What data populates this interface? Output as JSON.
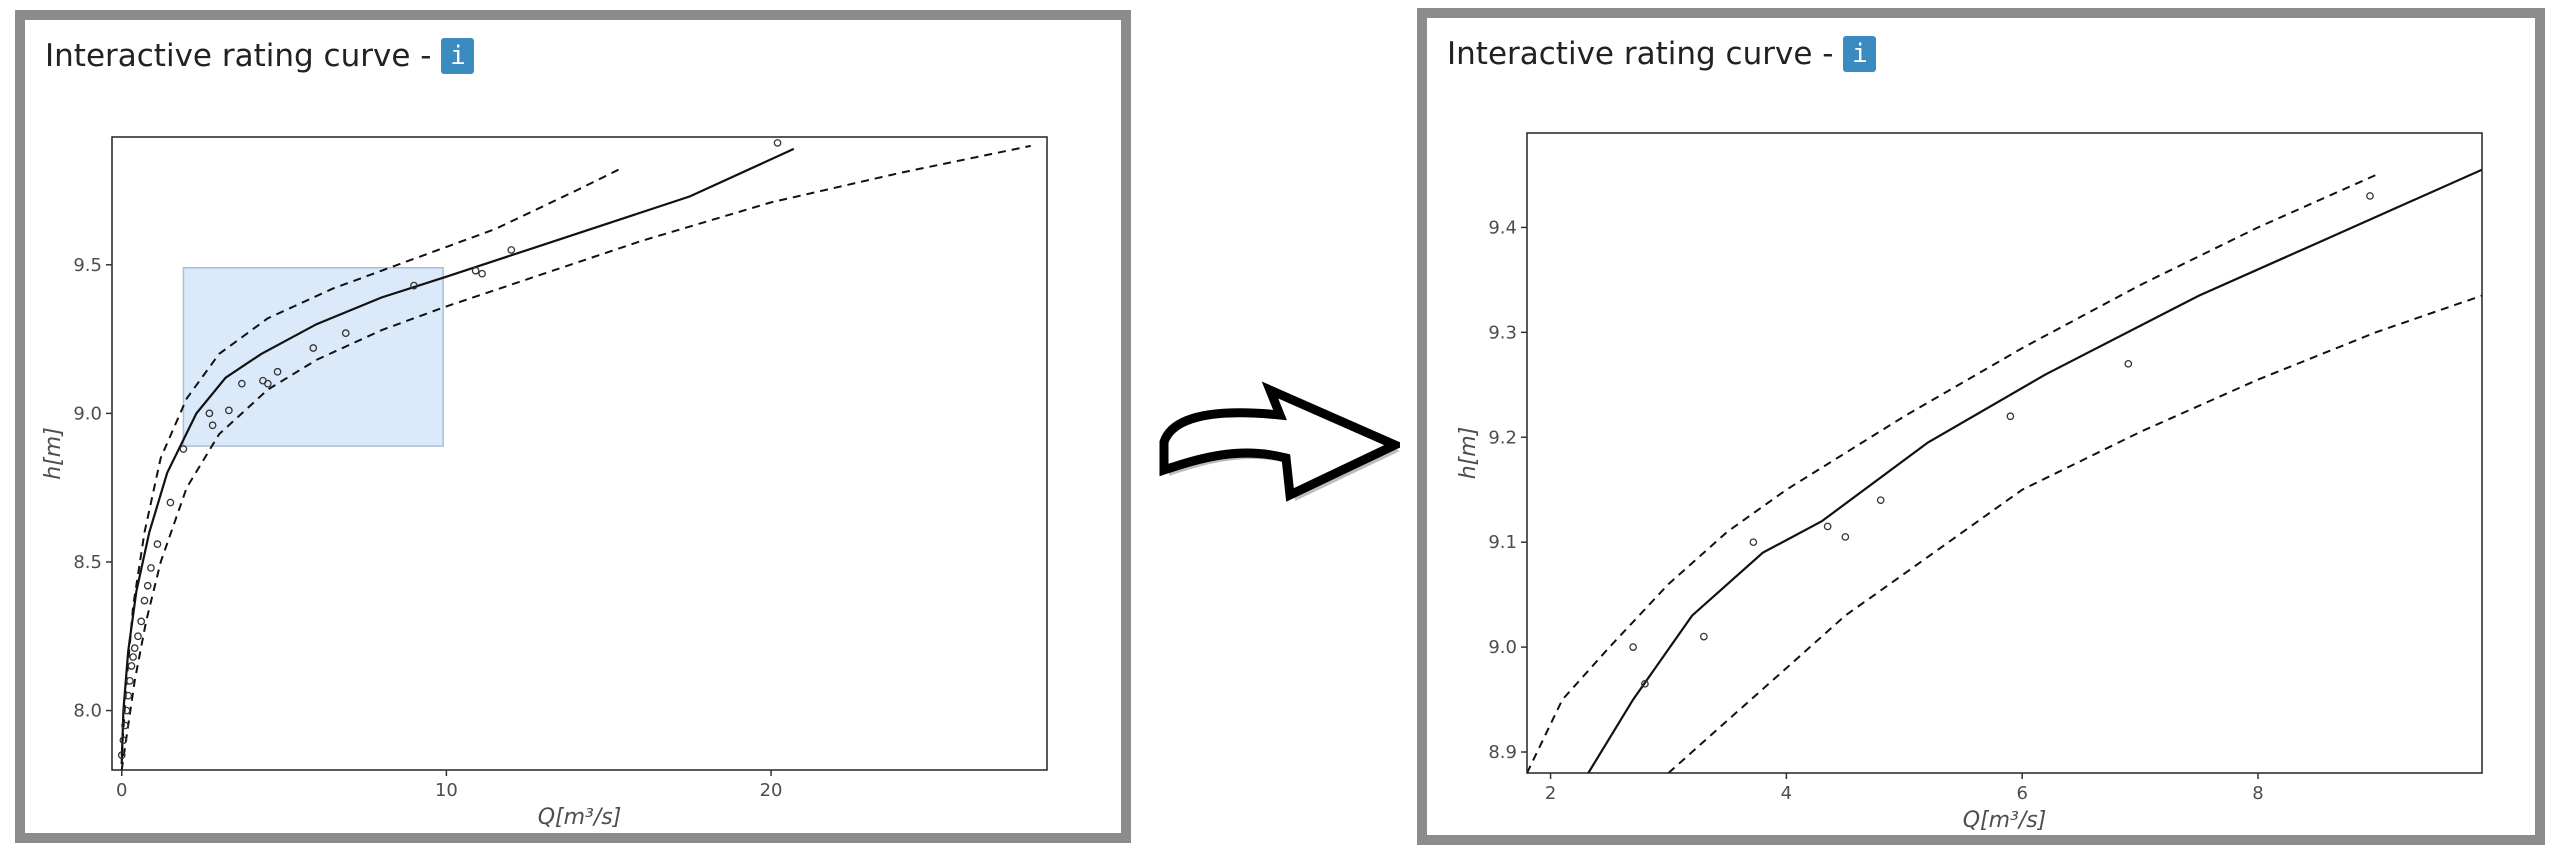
{
  "left_panel": {
    "title": "Interactive rating curve -",
    "info_icon_label": "i"
  },
  "right_panel": {
    "title": "Interactive rating curve -",
    "info_icon_label": "i"
  },
  "transition": {
    "icon": "curved-arrow-right-icon"
  },
  "chart_data": [
    {
      "id": "overview",
      "type": "line",
      "title": "",
      "xlabel": "Q[m³/s]",
      "ylabel": "h[m]",
      "xlim": [
        -0.3,
        28.5
      ],
      "ylim": [
        7.8,
        9.93
      ],
      "x_ticks": [
        0,
        10,
        20
      ],
      "x_tick_labels": [
        "0",
        "10",
        "20"
      ],
      "y_ticks": [
        8.0,
        8.5,
        9.0,
        9.5
      ],
      "y_tick_labels": [
        "8.0",
        "8.5",
        "9.0",
        "9.5"
      ],
      "grid": false,
      "zoom_selection": {
        "x": [
          1.9,
          9.9
        ],
        "y": [
          8.89,
          9.49
        ],
        "color": "#dbeafb"
      },
      "series": [
        {
          "style": "solid",
          "points": [
            [
              0.0,
              7.82
            ],
            [
              0.05,
              8.0
            ],
            [
              0.2,
              8.2
            ],
            [
              0.45,
              8.4
            ],
            [
              0.85,
              8.6
            ],
            [
              1.4,
              8.8
            ],
            [
              2.3,
              9.0
            ],
            [
              3.2,
              9.12
            ],
            [
              4.3,
              9.2
            ],
            [
              6.0,
              9.3
            ],
            [
              8.0,
              9.39
            ],
            [
              10.0,
              9.46
            ],
            [
              12.5,
              9.55
            ],
            [
              15.0,
              9.64
            ],
            [
              17.5,
              9.73
            ],
            [
              20.7,
              9.89
            ]
          ]
        },
        {
          "style": "dashed",
          "points": [
            [
              0.0,
              7.85
            ],
            [
              0.15,
              8.1
            ],
            [
              0.35,
              8.35
            ],
            [
              0.7,
              8.6
            ],
            [
              1.2,
              8.85
            ],
            [
              2.0,
              9.05
            ],
            [
              3.0,
              9.2
            ],
            [
              4.5,
              9.32
            ],
            [
              6.5,
              9.42
            ],
            [
              9.0,
              9.52
            ],
            [
              11.5,
              9.62
            ],
            [
              14.0,
              9.75
            ],
            [
              15.3,
              9.82
            ]
          ]
        },
        {
          "style": "dashed",
          "points": [
            [
              0.0,
              7.8
            ],
            [
              0.2,
              7.95
            ],
            [
              0.4,
              8.1
            ],
            [
              0.75,
              8.3
            ],
            [
              1.2,
              8.5
            ],
            [
              2.0,
              8.75
            ],
            [
              3.0,
              8.93
            ],
            [
              4.5,
              9.08
            ],
            [
              6.0,
              9.18
            ],
            [
              8.0,
              9.28
            ],
            [
              10.0,
              9.36
            ],
            [
              13.0,
              9.47
            ],
            [
              16.0,
              9.58
            ],
            [
              20.0,
              9.71
            ],
            [
              24.0,
              9.81
            ],
            [
              28.0,
              9.9
            ]
          ]
        }
      ],
      "observations": [
        [
          20.2,
          9.91
        ],
        [
          12.0,
          9.55
        ],
        [
          10.9,
          9.48
        ],
        [
          11.1,
          9.47
        ],
        [
          9.0,
          9.43
        ],
        [
          6.9,
          9.27
        ],
        [
          5.9,
          9.22
        ],
        [
          4.8,
          9.14
        ],
        [
          4.5,
          9.1
        ],
        [
          4.35,
          9.11
        ],
        [
          3.7,
          9.1
        ],
        [
          3.3,
          9.01
        ],
        [
          2.8,
          8.96
        ],
        [
          2.7,
          9.0
        ],
        [
          1.9,
          8.88
        ],
        [
          1.5,
          8.7
        ],
        [
          1.1,
          8.56
        ],
        [
          0.9,
          8.48
        ],
        [
          0.8,
          8.42
        ],
        [
          0.7,
          8.37
        ],
        [
          0.6,
          8.3
        ],
        [
          0.5,
          8.25
        ],
        [
          0.4,
          8.21
        ],
        [
          0.35,
          8.18
        ],
        [
          0.3,
          8.15
        ],
        [
          0.25,
          8.1
        ],
        [
          0.2,
          8.05
        ],
        [
          0.15,
          8.0
        ],
        [
          0.1,
          7.95
        ],
        [
          0.05,
          7.9
        ],
        [
          0.0,
          7.85
        ]
      ]
    },
    {
      "id": "zoomed",
      "type": "line",
      "title": "",
      "xlabel": "Q[m³/s]",
      "ylabel": "h[m]",
      "xlim": [
        1.8,
        9.9
      ],
      "ylim": [
        8.88,
        9.49
      ],
      "x_ticks": [
        2,
        4,
        6,
        8
      ],
      "x_tick_labels": [
        "2",
        "4",
        "6",
        "8"
      ],
      "y_ticks": [
        8.9,
        9.0,
        9.1,
        9.2,
        9.3,
        9.4
      ],
      "y_tick_labels": [
        "8.9",
        "9.0",
        "9.1",
        "9.2",
        "9.3",
        "9.4"
      ],
      "grid": false,
      "series": [
        {
          "style": "solid",
          "points": [
            [
              2.32,
              8.88
            ],
            [
              2.7,
              8.95
            ],
            [
              3.2,
              9.03
            ],
            [
              3.8,
              9.09
            ],
            [
              4.3,
              9.12
            ],
            [
              5.2,
              9.195
            ],
            [
              6.2,
              9.26
            ],
            [
              7.5,
              9.335
            ],
            [
              8.5,
              9.385
            ],
            [
              9.9,
              9.455
            ]
          ]
        },
        {
          "style": "dashed",
          "points": [
            [
              1.8,
              8.88
            ],
            [
              2.1,
              8.95
            ],
            [
              2.5,
              9.0
            ],
            [
              3.0,
              9.06
            ],
            [
              3.5,
              9.11
            ],
            [
              4.0,
              9.15
            ],
            [
              5.0,
              9.22
            ],
            [
              6.0,
              9.285
            ],
            [
              7.0,
              9.345
            ],
            [
              8.0,
              9.4
            ],
            [
              8.5,
              9.425
            ],
            [
              9.0,
              9.45
            ]
          ]
        },
        {
          "style": "dashed",
          "points": [
            [
              3.0,
              8.88
            ],
            [
              3.5,
              8.93
            ],
            [
              4.0,
              8.98
            ],
            [
              4.5,
              9.03
            ],
            [
              5.0,
              9.07
            ],
            [
              6.0,
              9.15
            ],
            [
              7.0,
              9.205
            ],
            [
              8.0,
              9.255
            ],
            [
              9.0,
              9.3
            ],
            [
              9.9,
              9.335
            ]
          ]
        }
      ],
      "observations": [
        [
          8.95,
          9.43
        ],
        [
          6.9,
          9.27
        ],
        [
          5.9,
          9.22
        ],
        [
          4.8,
          9.14
        ],
        [
          4.5,
          9.105
        ],
        [
          4.35,
          9.115
        ],
        [
          3.72,
          9.1
        ],
        [
          3.3,
          9.01
        ],
        [
          2.8,
          8.965
        ],
        [
          2.7,
          9.0
        ]
      ]
    }
  ]
}
